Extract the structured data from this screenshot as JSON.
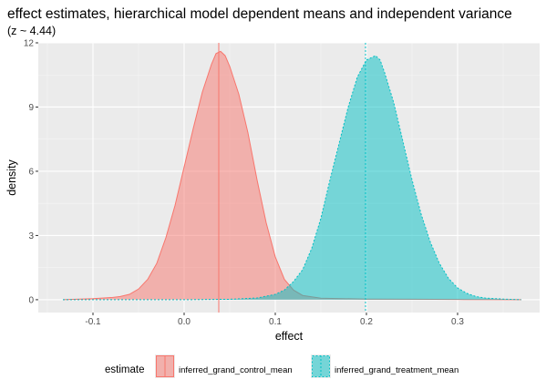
{
  "chart_data": {
    "type": "area",
    "title": "effect estimates, hierarchical model dependent means and independent variance",
    "subtitle": "(z ~  4.44)",
    "xlabel": "effect",
    "ylabel": "density",
    "xlim": [
      -0.16,
      0.39
    ],
    "ylim": [
      -0.6,
      12.0
    ],
    "x_ticks": [
      -0.1,
      0.0,
      0.1,
      0.2,
      0.3
    ],
    "x_tick_labels": [
      "-0.1",
      "0.0",
      "0.1",
      "0.2",
      "0.3"
    ],
    "y_ticks": [
      0,
      3,
      6,
      9,
      12
    ],
    "y_tick_labels": [
      "0",
      "3",
      "6",
      "9",
      "12"
    ],
    "grid": true,
    "legend_title": "estimate",
    "legend_position": "bottom",
    "series": [
      {
        "name": "inferred_grand_control_mean",
        "color": "#F8766D",
        "fill": "#F8766D",
        "linetype": "solid",
        "mean_line": 0.038,
        "x": [
          -0.133,
          -0.1,
          -0.08,
          -0.07,
          -0.06,
          -0.05,
          -0.04,
          -0.03,
          -0.02,
          -0.01,
          0.0,
          0.01,
          0.02,
          0.03,
          0.035,
          0.04,
          0.045,
          0.05,
          0.06,
          0.07,
          0.08,
          0.09,
          0.1,
          0.11,
          0.12,
          0.13,
          0.15,
          0.2,
          0.25,
          0.3,
          0.37
        ],
        "y": [
          0.0,
          0.05,
          0.1,
          0.15,
          0.25,
          0.5,
          0.95,
          1.7,
          2.9,
          4.4,
          6.2,
          8.0,
          9.7,
          11.0,
          11.5,
          11.6,
          11.4,
          10.9,
          9.6,
          7.8,
          5.6,
          3.6,
          2.0,
          0.95,
          0.45,
          0.2,
          0.07,
          0.03,
          0.02,
          0.01,
          0.0
        ]
      },
      {
        "name": "inferred_grand_treatment_mean",
        "color": "#00BFC4",
        "fill": "#00BFC4",
        "linetype": "dotted",
        "mean_line": 0.199,
        "x": [
          -0.133,
          0.0,
          0.05,
          0.08,
          0.1,
          0.11,
          0.12,
          0.13,
          0.14,
          0.15,
          0.16,
          0.17,
          0.18,
          0.19,
          0.2,
          0.205,
          0.21,
          0.215,
          0.22,
          0.23,
          0.24,
          0.25,
          0.26,
          0.27,
          0.28,
          0.29,
          0.3,
          0.31,
          0.32,
          0.33,
          0.35,
          0.37
        ],
        "y": [
          0.0,
          0.0,
          0.02,
          0.08,
          0.25,
          0.45,
          0.85,
          1.4,
          2.4,
          3.8,
          5.6,
          7.3,
          9.0,
          10.4,
          11.2,
          11.3,
          11.4,
          11.2,
          10.6,
          9.2,
          7.4,
          5.6,
          4.0,
          2.7,
          1.7,
          1.0,
          0.55,
          0.3,
          0.15,
          0.08,
          0.03,
          0.0
        ]
      }
    ]
  }
}
